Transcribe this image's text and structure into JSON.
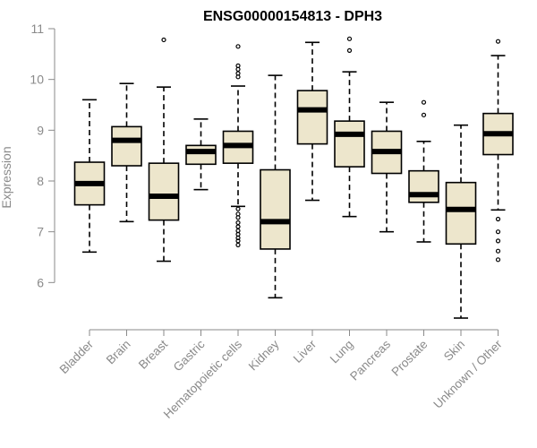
{
  "chart_data": {
    "type": "boxplot",
    "title": "ENSG00000154813 - DPH3",
    "ylabel": "Expression",
    "xlabel": "",
    "ylim": [
      5.3,
      11.0
    ],
    "yticks": [
      6,
      7,
      8,
      9,
      10,
      11
    ],
    "box_color": "#ede6cc",
    "grid": false,
    "categories": [
      "Bladder",
      "Brain",
      "Breast",
      "Gastric",
      "Hematopoietic cells",
      "Kidney",
      "Liver",
      "Lung",
      "Pancreas",
      "Prostate",
      "Skin",
      "Unknown / Other"
    ],
    "boxes": [
      {
        "min": 6.6,
        "q1": 7.53,
        "median": 7.95,
        "q3": 8.37,
        "max": 9.6,
        "outliers": []
      },
      {
        "min": 7.2,
        "q1": 8.3,
        "median": 8.8,
        "q3": 9.07,
        "max": 9.92,
        "outliers": []
      },
      {
        "min": 6.42,
        "q1": 7.23,
        "median": 7.7,
        "q3": 8.35,
        "max": 9.85,
        "outliers": [
          10.78
        ]
      },
      {
        "min": 7.83,
        "q1": 8.33,
        "median": 8.58,
        "q3": 8.7,
        "max": 9.22,
        "outliers": []
      },
      {
        "min": 7.5,
        "q1": 8.35,
        "median": 8.7,
        "q3": 8.98,
        "max": 9.87,
        "outliers": [
          10.65,
          10.27,
          10.2,
          10.12,
          10.05,
          7.45,
          7.35,
          7.28,
          7.18,
          7.1,
          7.02,
          6.95,
          6.88,
          6.82,
          6.74
        ]
      },
      {
        "min": 5.7,
        "q1": 6.66,
        "median": 7.2,
        "q3": 8.22,
        "max": 10.08,
        "outliers": []
      },
      {
        "min": 7.62,
        "q1": 8.73,
        "median": 9.4,
        "q3": 9.78,
        "max": 10.73,
        "outliers": []
      },
      {
        "min": 7.3,
        "q1": 8.28,
        "median": 8.92,
        "q3": 9.18,
        "max": 10.15,
        "outliers": [
          10.8,
          10.57
        ]
      },
      {
        "min": 7.0,
        "q1": 8.15,
        "median": 8.58,
        "q3": 8.98,
        "max": 9.55,
        "outliers": []
      },
      {
        "min": 6.8,
        "q1": 7.58,
        "median": 7.73,
        "q3": 8.2,
        "max": 8.78,
        "outliers": [
          9.55,
          9.3
        ]
      },
      {
        "min": 5.3,
        "q1": 6.76,
        "median": 7.44,
        "q3": 7.97,
        "max": 9.1,
        "outliers": []
      },
      {
        "min": 7.43,
        "q1": 8.52,
        "median": 8.93,
        "q3": 9.33,
        "max": 10.47,
        "outliers": [
          10.75,
          7.25,
          7.0,
          6.82,
          6.62,
          6.45
        ]
      }
    ]
  }
}
